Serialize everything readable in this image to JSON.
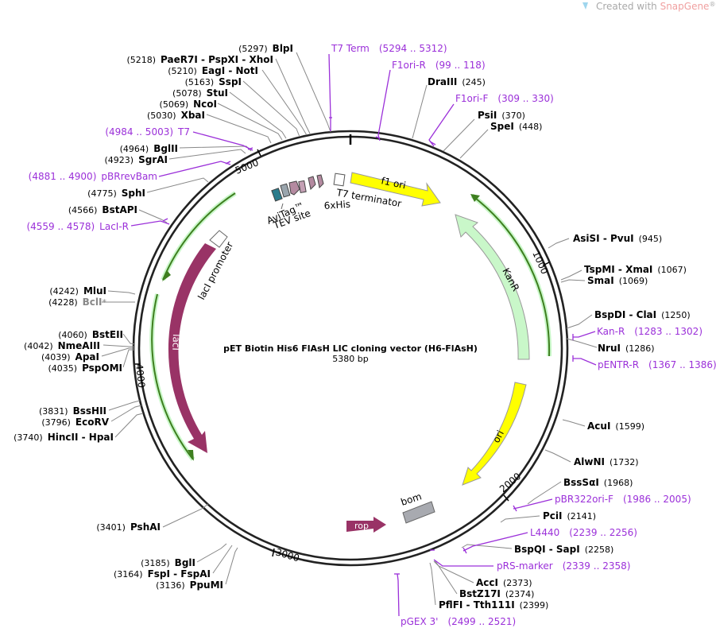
{
  "watermark": {
    "prefix": "Created with ",
    "brand": "SnapGene",
    "mark": "®"
  },
  "title": "pET Biotin His6 FlAsH LIC cloning vector (H6-FlAsH)",
  "length": "5380 bp",
  "ticks": [
    "1000",
    "2000",
    "3000",
    "4000",
    "5000"
  ],
  "features": {
    "f1_ori": "f1 ori",
    "kanr": "KanR",
    "ori": "ori",
    "bom": "bom",
    "rop": "rop",
    "lacI": "lacI",
    "lacI_promoter": "lacI promoter",
    "t7_terminator": "T7 terminator",
    "his": "6xHis",
    "tev": "TEV site",
    "avitag": "AviTag™"
  },
  "colors": {
    "yellow": "#ffff00",
    "green_light": "#c9f7c9",
    "green_dark": "#3e7f1f",
    "maroon": "#993366",
    "purple": "#9b30d9",
    "gray_box": "#a8aab0"
  },
  "sites": [
    {
      "pos": "(5297)",
      "name": "BlpI"
    },
    {
      "pos": "(5218)",
      "name": "PaeR7I - PspXI - XhoI"
    },
    {
      "pos": "(5210)",
      "name": "EagI - NotI"
    },
    {
      "pos": "(5163)",
      "name": "SspI"
    },
    {
      "pos": "(5078)",
      "name": "StuI"
    },
    {
      "pos": "(5069)",
      "name": "NcoI"
    },
    {
      "pos": "(5030)",
      "name": "XbaI"
    },
    {
      "pos": "(4964)",
      "name": "BglII"
    },
    {
      "pos": "(4923)",
      "name": "SgrAI"
    },
    {
      "pos": "(4775)",
      "name": "SphI"
    },
    {
      "pos": "(4566)",
      "name": "BstAPI"
    },
    {
      "pos": "(4242)",
      "name": "MluI"
    },
    {
      "pos": "(4228)",
      "name": "BclI",
      "note": "*"
    },
    {
      "pos": "(4060)",
      "name": "BstEII"
    },
    {
      "pos": "(4042)",
      "name": "NmeAIII"
    },
    {
      "pos": "(4039)",
      "name": "ApaI"
    },
    {
      "pos": "(4035)",
      "name": "PspOMI"
    },
    {
      "pos": "(3831)",
      "name": "BssHII"
    },
    {
      "pos": "(3796)",
      "name": "EcoRV"
    },
    {
      "pos": "(3740)",
      "name": "HincII - HpaI"
    },
    {
      "pos": "(3401)",
      "name": "PshAI"
    },
    {
      "pos": "(3185)",
      "name": "BglI"
    },
    {
      "pos": "(3164)",
      "name": "FspI - FspAI"
    },
    {
      "pos": "(3136)",
      "name": "PpuMI"
    },
    {
      "name": "DraIII",
      "pos": "(245)"
    },
    {
      "name": "PsiI",
      "pos": "(370)"
    },
    {
      "name": "SpeI",
      "pos": "(448)"
    },
    {
      "name": "AsiSI - PvuI",
      "pos": "(945)"
    },
    {
      "name": "TspMI - XmaI",
      "pos": "(1067)"
    },
    {
      "name": "SmaI",
      "pos": "(1069)"
    },
    {
      "name": "BspDI - ClaI",
      "pos": "(1250)"
    },
    {
      "name": "NruI",
      "pos": "(1286)"
    },
    {
      "name": "AcuI",
      "pos": "(1599)"
    },
    {
      "name": "AlwNI",
      "pos": "(1732)"
    },
    {
      "name": "BssSαI",
      "pos": "(1968)"
    },
    {
      "name": "PciI",
      "pos": "(2141)"
    },
    {
      "name": "BspQI - SapI",
      "pos": "(2258)"
    },
    {
      "name": "AccI",
      "pos": "(2373)"
    },
    {
      "name": "BstZ17I",
      "pos": "(2374)"
    },
    {
      "name": "PflFI - Tth111I",
      "pos": "(2399)"
    }
  ],
  "primers": [
    {
      "name": "T7 Term",
      "range": "(5294 .. 5312)"
    },
    {
      "name": "F1ori-R",
      "range": "(99 .. 118)"
    },
    {
      "name": "F1ori-F",
      "range": "(309 .. 330)"
    },
    {
      "name": "T7",
      "range": "(4984 .. 5003)"
    },
    {
      "name": "pBRrevBam",
      "range": "(4881 .. 4900)"
    },
    {
      "name": "LacI-R",
      "range": "(4559 .. 4578)"
    },
    {
      "name": "Kan-R",
      "range": "(1283 .. 1302)"
    },
    {
      "name": "pENTR-R",
      "range": "(1367 .. 1386)"
    },
    {
      "name": "pBR322ori-F",
      "range": "(1986 .. 2005)"
    },
    {
      "name": "L4440",
      "range": "(2239 .. 2256)"
    },
    {
      "name": "pRS-marker",
      "range": "(2339 .. 2358)"
    },
    {
      "name": "pGEX 3'",
      "range": "(2499 .. 2521)"
    }
  ]
}
